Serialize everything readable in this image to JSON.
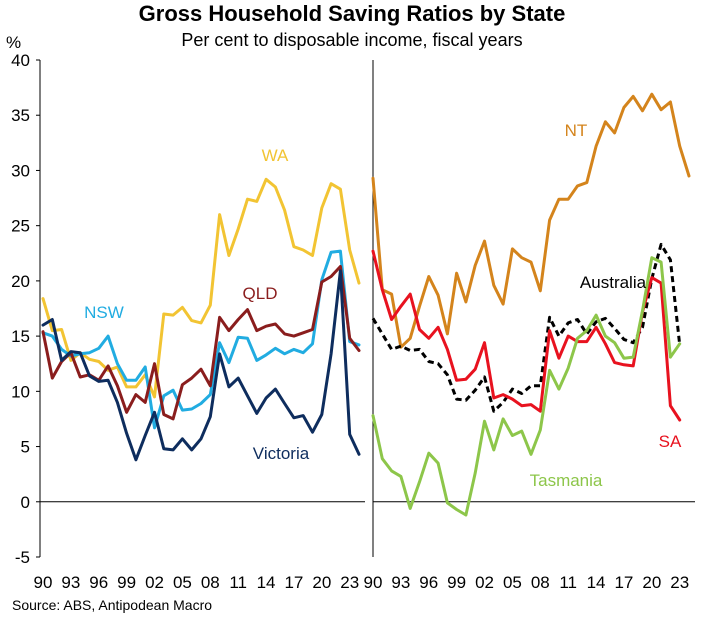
{
  "chart_data": {
    "type": "line",
    "title": "Gross Household Saving Ratios by State",
    "subtitle": "Per cent to disposable income, fiscal years",
    "ylabel": "%",
    "ylim": [
      -5,
      40
    ],
    "yticks": [
      -5,
      0,
      5,
      10,
      15,
      20,
      25,
      30,
      35,
      40
    ],
    "xlim": [
      1990,
      2024
    ],
    "xtick_labels": [
      "90",
      "93",
      "96",
      "99",
      "02",
      "05",
      "08",
      "11",
      "14",
      "17",
      "20",
      "23"
    ],
    "source": "Source: ABS, Antipodean Macro",
    "panels": [
      {
        "name": "left",
        "series": [
          {
            "name": "WA",
            "color": "#f2c433",
            "dashed": false,
            "x": [
              1990,
              1991,
              1992,
              1993,
              1994,
              1995,
              1996,
              1997,
              1998,
              1999,
              2000,
              2001,
              2002,
              2003,
              2004,
              2005,
              2006,
              2007,
              2008,
              2009,
              2010,
              2011,
              2012,
              2013,
              2014,
              2015,
              2016,
              2017,
              2018,
              2019,
              2020,
              2021,
              2022,
              2023,
              2024
            ],
            "y": [
              18.4,
              15.5,
              15.6,
              12.8,
              13.5,
              12.9,
              12.7,
              11.9,
              12.2,
              10.4,
              10.4,
              11.5,
              9.5,
              17.0,
              16.9,
              17.6,
              16.4,
              16.2,
              17.8,
              26.0,
              22.3,
              24.7,
              27.4,
              27.2,
              29.2,
              28.5,
              26.4,
              23.1,
              22.8,
              22.3,
              26.6,
              28.8,
              28.3,
              22.8,
              19.8
            ]
          },
          {
            "name": "NSW",
            "color": "#21ace1",
            "dashed": false,
            "x": [
              1990,
              1991,
              1992,
              1993,
              1994,
              1995,
              1996,
              1997,
              1998,
              1999,
              2000,
              2001,
              2002,
              2003,
              2004,
              2005,
              2006,
              2007,
              2008,
              2009,
              2010,
              2011,
              2012,
              2013,
              2014,
              2015,
              2016,
              2017,
              2018,
              2019,
              2020,
              2021,
              2022,
              2023,
              2024
            ],
            "y": [
              15.3,
              15.0,
              13.8,
              13.2,
              13.4,
              13.5,
              13.9,
              15.0,
              12.5,
              11.0,
              11.0,
              12.2,
              6.7,
              9.6,
              10.1,
              8.3,
              8.4,
              8.9,
              9.7,
              14.4,
              12.6,
              14.9,
              14.8,
              12.8,
              13.3,
              13.9,
              13.4,
              13.8,
              13.5,
              14.3,
              20.1,
              22.6,
              22.7,
              14.5,
              14.2
            ]
          },
          {
            "name": "QLD",
            "color": "#8a1d1d",
            "dashed": false,
            "x": [
              1990,
              1991,
              1992,
              1993,
              1994,
              1995,
              1996,
              1997,
              1998,
              1999,
              2000,
              2001,
              2002,
              2003,
              2004,
              2005,
              2006,
              2007,
              2008,
              2009,
              2010,
              2011,
              2012,
              2013,
              2014,
              2015,
              2016,
              2017,
              2018,
              2019,
              2020,
              2021,
              2022,
              2023,
              2024
            ],
            "y": [
              15.4,
              11.2,
              12.7,
              13.5,
              11.3,
              11.5,
              11.0,
              12.3,
              10.5,
              8.1,
              9.7,
              9.0,
              12.5,
              7.9,
              7.5,
              10.6,
              11.2,
              12.0,
              10.5,
              16.7,
              15.5,
              16.5,
              17.4,
              15.5,
              15.9,
              16.1,
              15.2,
              15.0,
              15.3,
              15.6,
              19.9,
              20.4,
              21.3,
              14.8,
              13.7
            ]
          },
          {
            "name": "Victoria",
            "color": "#0e2d5e",
            "dashed": false,
            "x": [
              1990,
              1991,
              1992,
              1993,
              1994,
              1995,
              1996,
              1997,
              1998,
              1999,
              2000,
              2001,
              2002,
              2003,
              2004,
              2005,
              2006,
              2007,
              2008,
              2009,
              2010,
              2011,
              2012,
              2013,
              2014,
              2015,
              2016,
              2017,
              2018,
              2019,
              2020,
              2021,
              2022,
              2023,
              2024
            ],
            "y": [
              16.0,
              16.5,
              12.8,
              13.6,
              13.5,
              11.4,
              10.9,
              11.0,
              9.0,
              6.2,
              3.8,
              6.0,
              8.1,
              4.8,
              4.7,
              5.7,
              4.7,
              5.7,
              7.7,
              13.4,
              10.4,
              11.2,
              9.6,
              8.0,
              9.4,
              10.2,
              8.9,
              7.6,
              7.8,
              6.3,
              7.9,
              13.4,
              20.9,
              6.1,
              4.3
            ]
          }
        ]
      },
      {
        "name": "right",
        "series": [
          {
            "name": "NT",
            "color": "#d4841c",
            "dashed": false,
            "x": [
              1990,
              1991,
              1992,
              1993,
              1994,
              1995,
              1996,
              1997,
              1998,
              1999,
              2000,
              2001,
              2002,
              2003,
              2004,
              2005,
              2006,
              2007,
              2008,
              2009,
              2010,
              2011,
              2012,
              2013,
              2014,
              2015,
              2016,
              2017,
              2018,
              2019,
              2020,
              2021,
              2022,
              2023,
              2024
            ],
            "y": [
              29.3,
              19.2,
              18.8,
              14.0,
              14.8,
              17.7,
              20.4,
              18.7,
              15.2,
              20.7,
              18.1,
              21.4,
              23.6,
              19.6,
              17.9,
              22.9,
              22.1,
              21.7,
              19.1,
              25.5,
              27.4,
              27.4,
              28.6,
              28.9,
              32.2,
              34.4,
              33.4,
              35.7,
              36.7,
              35.4,
              36.9,
              35.5,
              36.2,
              32.2,
              29.5
            ]
          },
          {
            "name": "Australia",
            "color": "#000000",
            "dashed": true,
            "x": [
              1990,
              1991,
              1992,
              1993,
              1994,
              1995,
              1996,
              1997,
              1998,
              1999,
              2000,
              2001,
              2002,
              2003,
              2004,
              2005,
              2006,
              2007,
              2008,
              2009,
              2010,
              2011,
              2012,
              2013,
              2014,
              2015,
              2016,
              2017,
              2018,
              2019,
              2020,
              2021,
              2022,
              2023,
              2024
            ],
            "y": [
              16.6,
              15.2,
              13.8,
              14.1,
              13.7,
              13.8,
              12.7,
              12.5,
              11.5,
              9.3,
              9.2,
              10.1,
              11.3,
              8.2,
              9.0,
              10.2,
              9.8,
              10.5,
              10.5,
              16.7,
              15.0,
              16.2,
              16.5,
              15.2,
              16.3,
              16.6,
              15.7,
              14.7,
              14.4,
              15.8,
              20.2,
              23.3,
              21.9,
              14.2,
              null
            ]
          },
          {
            "name": "SA",
            "color": "#e8121f",
            "dashed": false,
            "x": [
              1990,
              1991,
              1992,
              1993,
              1994,
              1995,
              1996,
              1997,
              1998,
              1999,
              2000,
              2001,
              2002,
              2003,
              2004,
              2005,
              2006,
              2007,
              2008,
              2009,
              2010,
              2011,
              2012,
              2013,
              2014,
              2015,
              2016,
              2017,
              2018,
              2019,
              2020,
              2021,
              2022,
              2023,
              2024
            ],
            "y": [
              22.7,
              19.2,
              16.5,
              17.7,
              18.8,
              15.6,
              14.8,
              15.8,
              13.8,
              11.0,
              11.1,
              12.0,
              14.4,
              9.4,
              9.7,
              9.3,
              8.7,
              8.8,
              8.2,
              15.5,
              13.0,
              15.0,
              14.5,
              14.5,
              15.8,
              14.3,
              12.6,
              12.4,
              12.3,
              17.2,
              20.3,
              19.8,
              8.7,
              7.4,
              null
            ]
          },
          {
            "name": "Tasmania",
            "color": "#8dc64a",
            "dashed": false,
            "x": [
              1990,
              1991,
              1992,
              1993,
              1994,
              1995,
              1996,
              1997,
              1998,
              1999,
              2000,
              2001,
              2002,
              2003,
              2004,
              2005,
              2006,
              2007,
              2008,
              2009,
              2010,
              2011,
              2012,
              2013,
              2014,
              2015,
              2016,
              2017,
              2018,
              2019,
              2020,
              2021,
              2022,
              2023,
              2024
            ],
            "y": [
              7.8,
              3.9,
              2.8,
              2.3,
              -0.6,
              1.8,
              4.4,
              3.5,
              -0.1,
              -0.7,
              -1.2,
              2.6,
              7.3,
              4.7,
              7.5,
              6.0,
              6.4,
              4.3,
              6.5,
              11.9,
              10.2,
              12.1,
              14.8,
              15.5,
              16.9,
              15.0,
              14.4,
              13.0,
              13.1,
              17.3,
              22.1,
              21.7,
              13.1,
              14.3,
              null
            ]
          }
        ]
      }
    ]
  }
}
